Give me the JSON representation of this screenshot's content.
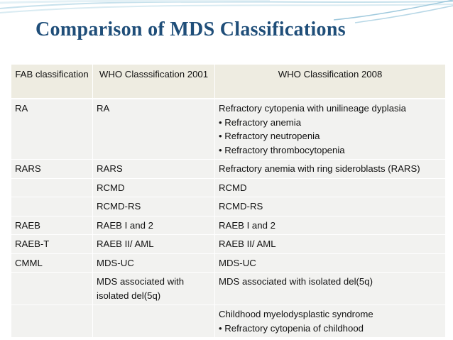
{
  "title": "Comparison of MDS Classifications",
  "colors": {
    "title": "#1f4e79",
    "header_bg": "#eeece1",
    "body_bg": "#f2f2f0",
    "accent_curve": "#9fc9dd"
  },
  "table": {
    "headers": [
      "FAB classification",
      "WHO Classsification 2001",
      "WHO Classification 2008"
    ],
    "rows": [
      {
        "fab": "RA",
        "who2001": "RA",
        "who2008": "Refractory cytopenia with unilineage dyplasia",
        "bullets": [
          "Refractory anemia",
          "Refractory neutropenia",
          "Refractory thrombocytopenia"
        ]
      },
      {
        "fab": "RARS",
        "who2001": "RARS",
        "who2008": "Refractory anemia with ring sideroblasts (RARS)",
        "bullets": []
      },
      {
        "fab": "",
        "who2001": "RCMD",
        "who2008": "RCMD",
        "bullets": []
      },
      {
        "fab": "",
        "who2001": "RCMD-RS",
        "who2008": "RCMD-RS",
        "bullets": []
      },
      {
        "fab": "RAEB",
        "who2001": "RAEB I and 2",
        "who2008": "RAEB I and 2",
        "bullets": []
      },
      {
        "fab": "RAEB-T",
        "who2001": "RAEB II/ AML",
        "who2008": "RAEB II/ AML",
        "bullets": []
      },
      {
        "fab": "CMML",
        "who2001": "MDS-UC",
        "who2008": "MDS-UC",
        "bullets": []
      },
      {
        "fab": "",
        "who2001": "MDS associated with isolated del(5q)",
        "who2008": "MDS associated with isolated del(5q)",
        "bullets": []
      },
      {
        "fab": "",
        "who2001": "",
        "who2008": "Childhood myelodysplastic syndrome",
        "bullets": [
          "Refractory cytopenia of childhood"
        ]
      }
    ]
  }
}
